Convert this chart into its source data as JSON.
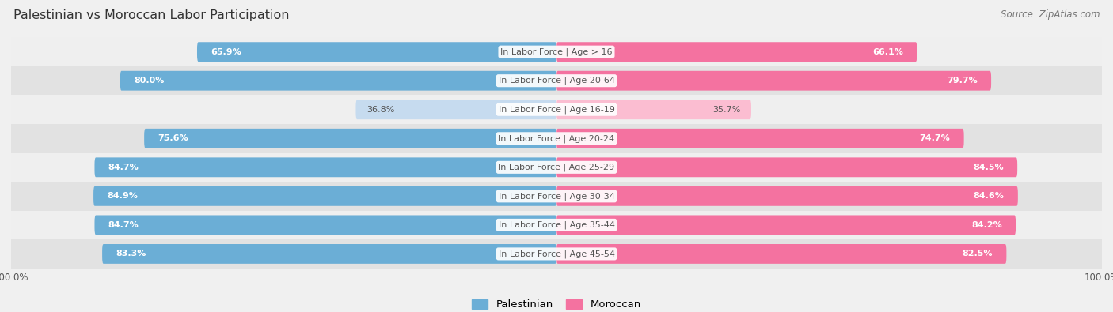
{
  "title": "Palestinian vs Moroccan Labor Participation",
  "source": "Source: ZipAtlas.com",
  "categories": [
    "In Labor Force | Age > 16",
    "In Labor Force | Age 20-64",
    "In Labor Force | Age 16-19",
    "In Labor Force | Age 20-24",
    "In Labor Force | Age 25-29",
    "In Labor Force | Age 30-34",
    "In Labor Force | Age 35-44",
    "In Labor Force | Age 45-54"
  ],
  "palestinian_values": [
    65.9,
    80.0,
    36.8,
    75.6,
    84.7,
    84.9,
    84.7,
    83.3
  ],
  "moroccan_values": [
    66.1,
    79.7,
    35.7,
    74.7,
    84.5,
    84.6,
    84.2,
    82.5
  ],
  "palestinian_color_strong": "#6BAED6",
  "palestinian_color_light": "#C6DBEF",
  "moroccan_color_strong": "#F472A0",
  "moroccan_color_light": "#FBBDD1",
  "row_bg_even": "#EFEFEF",
  "row_bg_odd": "#E2E2E2",
  "outer_bg": "#F0F0F0",
  "label_color_dark": "#555555",
  "label_color_white": "#FFFFFF",
  "bar_height": 0.68,
  "max_value": 100.0,
  "light_threshold": 50.0,
  "legend_labels": [
    "Palestinian",
    "Moroccan"
  ]
}
